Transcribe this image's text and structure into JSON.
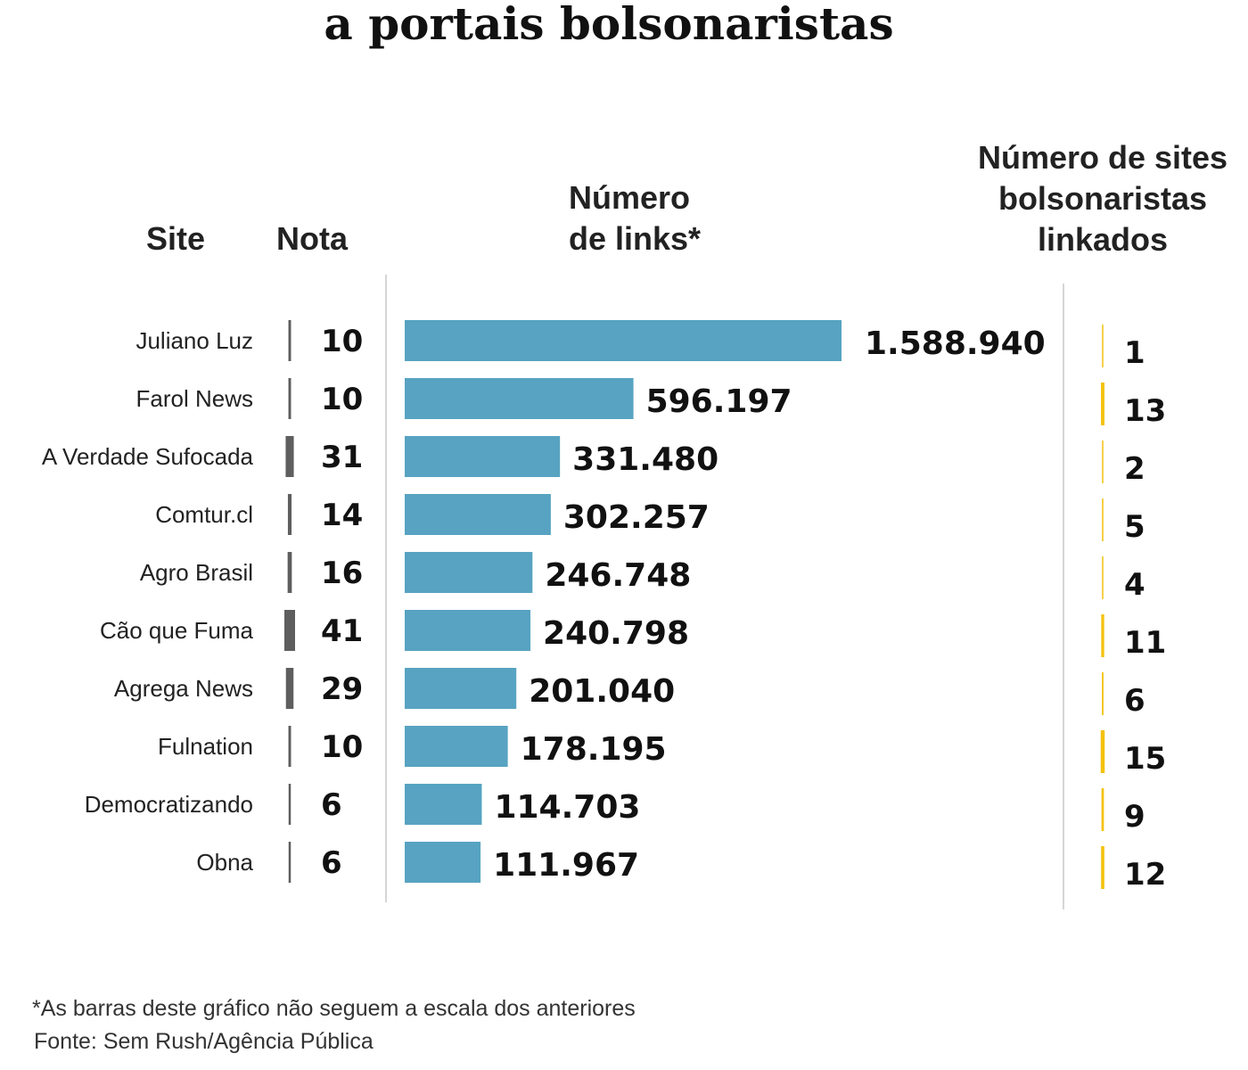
{
  "chart_data": {
    "type": "table",
    "title": "a portais bolsonaristas",
    "columns": {
      "site": "Site",
      "nota": "Nota",
      "links": [
        "Número",
        "de links*"
      ],
      "linked": [
        "Número de sites",
        "bolsonaristas",
        "linkados"
      ]
    },
    "rows": [
      {
        "site": "Juliano Luz",
        "nota": 10,
        "links": 1588940,
        "links_label": "1.588.940",
        "linked": 1
      },
      {
        "site": "Farol News",
        "nota": 10,
        "links": 596197,
        "links_label": "596.197",
        "linked": 13
      },
      {
        "site": "A Verdade Sufocada",
        "nota": 31,
        "links": 331480,
        "links_label": "331.480",
        "linked": 2
      },
      {
        "site": "Comtur.cl",
        "nota": 14,
        "links": 302257,
        "links_label": "302.257",
        "linked": 5
      },
      {
        "site": "Agro Brasil",
        "nota": 16,
        "links": 246748,
        "links_label": "246.748",
        "linked": 4
      },
      {
        "site": "Cão que Fuma",
        "nota": 41,
        "links": 240798,
        "links_label": "240.798",
        "linked": 11
      },
      {
        "site": "Agrega News",
        "nota": 29,
        "links": 201040,
        "links_label": "201.040",
        "linked": 6
      },
      {
        "site": "Fulnation",
        "nota": 10,
        "links": 178195,
        "links_label": "178.195",
        "linked": 15
      },
      {
        "site": "Democratizando",
        "nota": 6,
        "links": 114703,
        "links_label": "114.703",
        "linked": 9
      },
      {
        "site": "Obna",
        "nota": 6,
        "links": 111967,
        "links_label": "111.967",
        "linked": 12
      }
    ],
    "footnote": "*As barras deste gráfico não seguem a escala dos anteriores",
    "source": "Fonte: Sem Rush/Agência Pública"
  },
  "colors": {
    "bar": "#57a3c1",
    "nota_mark": "#5e5e5e",
    "linked_mark": "#f4c20d",
    "divider": "#c8c8c8"
  }
}
